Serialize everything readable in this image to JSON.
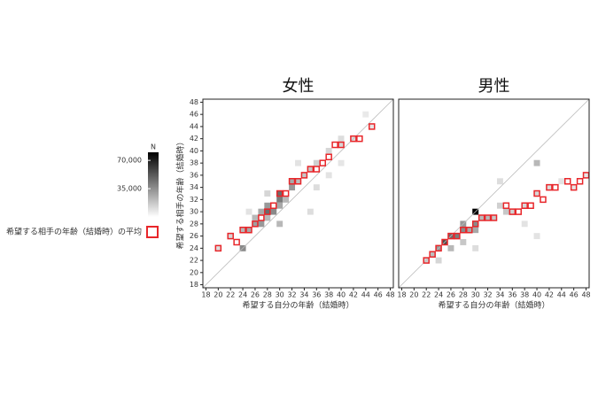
{
  "chart_data": [
    {
      "type": "heatmap",
      "title": "女性",
      "x_label": "希望する自分の年齢（結婚時）",
      "y_label": "希望する相手の年齢（結婚時）",
      "xlim": [
        17.5,
        48.5
      ],
      "ylim": [
        17.5,
        48.5
      ],
      "xticks": [
        18,
        20,
        22,
        24,
        26,
        28,
        30,
        32,
        34,
        36,
        38,
        40,
        42,
        44,
        46,
        48
      ],
      "yticks": [
        18,
        20,
        22,
        24,
        26,
        28,
        30,
        32,
        34,
        36,
        38,
        40,
        42,
        44,
        46,
        48
      ],
      "cells": {
        "x": [
          20,
          22,
          24,
          25,
          26,
          26,
          27,
          27,
          28,
          28,
          28,
          29,
          30,
          30,
          30,
          31,
          32,
          32,
          33,
          34,
          35,
          36,
          38,
          40,
          40,
          42,
          45,
          24,
          30,
          35,
          28,
          36,
          25,
          40,
          33,
          38,
          44
        ],
        "y": [
          24,
          26,
          27,
          27,
          28,
          29,
          28,
          30,
          30,
          31,
          29,
          30,
          32,
          33,
          31,
          32,
          34,
          35,
          35,
          36,
          37,
          38,
          40,
          41,
          42,
          42,
          44,
          24,
          28,
          30,
          33,
          34,
          30,
          38,
          38,
          36,
          46
        ],
        "values": [
          8000,
          10000,
          20000,
          25000,
          28000,
          20000,
          30000,
          25000,
          45000,
          30000,
          20000,
          35000,
          40000,
          45000,
          25000,
          20000,
          30000,
          25000,
          18000,
          15000,
          15000,
          12000,
          10000,
          10000,
          8000,
          8000,
          5000,
          35000,
          20000,
          8000,
          10000,
          8000,
          6000,
          5000,
          6000,
          6000,
          4000
        ]
      },
      "averages": {
        "x": [
          20,
          22,
          23,
          24,
          25,
          26,
          27,
          28,
          29,
          30,
          31,
          32,
          33,
          34,
          35,
          36,
          37,
          38,
          39,
          40,
          42,
          43,
          45
        ],
        "values": [
          24,
          26,
          25,
          27,
          27,
          28,
          29,
          30,
          31,
          33,
          33,
          35,
          35,
          36,
          37,
          37,
          38,
          39,
          41,
          41,
          42,
          42,
          44
        ]
      }
    },
    {
      "type": "heatmap",
      "title": "男性",
      "x_label": "希望する自分の年齢（結婚時）",
      "xlim": [
        17.5,
        48.5
      ],
      "ylim": [
        17.5,
        48.5
      ],
      "xticks": [
        18,
        20,
        22,
        24,
        26,
        28,
        30,
        32,
        34,
        36,
        38,
        40,
        42,
        44,
        46,
        48
      ],
      "cells": {
        "x": [
          22,
          23,
          24,
          25,
          26,
          27,
          28,
          28,
          29,
          30,
          30,
          30,
          31,
          32,
          33,
          34,
          35,
          36,
          38,
          40,
          40,
          42,
          44,
          46,
          48,
          26,
          28,
          34,
          38,
          40,
          30,
          24
        ],
        "y": [
          22,
          23,
          24,
          25,
          26,
          26,
          27,
          28,
          27,
          30,
          28,
          27,
          29,
          29,
          29,
          31,
          30,
          30,
          31,
          33,
          38,
          34,
          35,
          34,
          36,
          24,
          25,
          35,
          28,
          26,
          24,
          22
        ],
        "values": [
          12000,
          18000,
          30000,
          55000,
          45000,
          40000,
          35000,
          30000,
          25000,
          80000,
          35000,
          25000,
          20000,
          20000,
          15000,
          12000,
          15000,
          12000,
          10000,
          10000,
          20000,
          8000,
          6000,
          5000,
          5000,
          20000,
          15000,
          8000,
          6000,
          6000,
          8000,
          10000
        ]
      },
      "averages": {
        "x": [
          22,
          23,
          24,
          25,
          26,
          27,
          28,
          29,
          30,
          31,
          32,
          33,
          35,
          36,
          37,
          38,
          39,
          40,
          41,
          42,
          43,
          45,
          46,
          47,
          48
        ],
        "values": [
          22,
          23,
          24,
          25,
          26,
          26,
          27,
          27,
          28,
          29,
          29,
          29,
          31,
          30,
          30,
          31,
          31,
          33,
          32,
          34,
          34,
          35,
          34,
          35,
          36
        ]
      }
    }
  ],
  "legend": {
    "colorbar_title": "N",
    "lim": [
      0,
      80000
    ],
    "ticks": [
      {
        "value": 70000,
        "label": "70,000"
      },
      {
        "value": 35000,
        "label": "35,000"
      }
    ],
    "average_label": "希望する相手の年齢（結婚時）の平均",
    "average_color": "#e8262a",
    "cell_color": "#000000"
  }
}
